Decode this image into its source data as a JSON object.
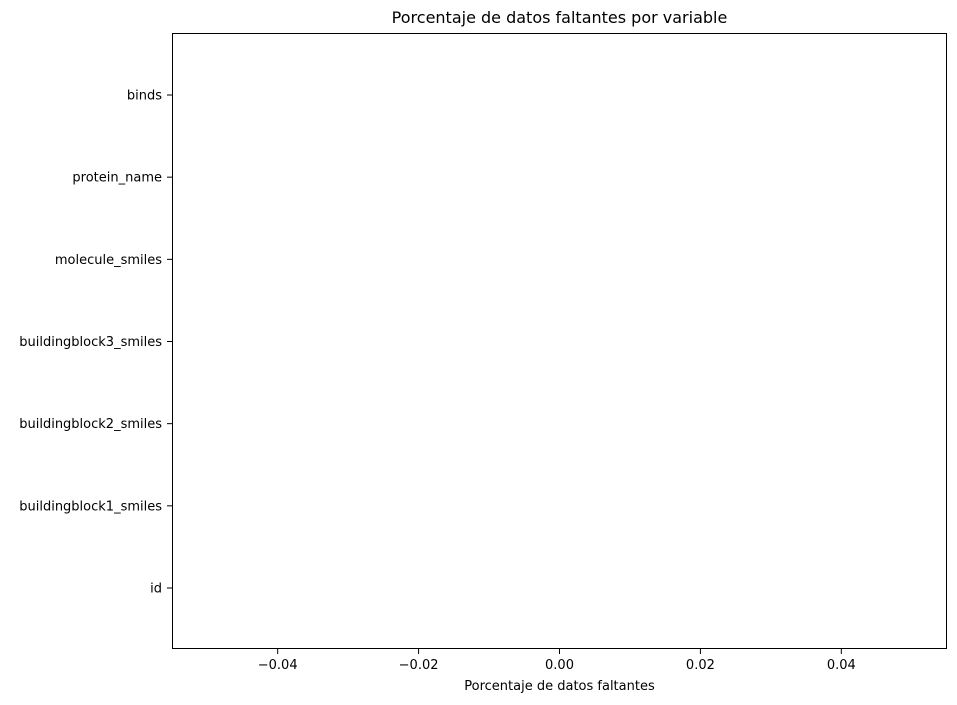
{
  "chart_data": {
    "type": "bar",
    "orientation": "horizontal",
    "title": "Porcentaje de datos faltantes por variable",
    "xlabel": "Porcentaje de datos faltantes",
    "ylabel": "",
    "categories": [
      "id",
      "buildingblock1_smiles",
      "buildingblock2_smiles",
      "buildingblock3_smiles",
      "molecule_smiles",
      "protein_name",
      "binds"
    ],
    "values": [
      0,
      0,
      0,
      0,
      0,
      0,
      0
    ],
    "xlim": [
      -0.055,
      0.055
    ],
    "x_ticks": [
      -0.04,
      -0.02,
      0.0,
      0.02,
      0.04
    ],
    "x_tick_labels": [
      "−0.04",
      "−0.02",
      "0.00",
      "0.02",
      "0.04"
    ],
    "grid": false,
    "colors": {
      "axes": "#000000",
      "background": "#ffffff",
      "bar": "#4c72b0"
    }
  }
}
